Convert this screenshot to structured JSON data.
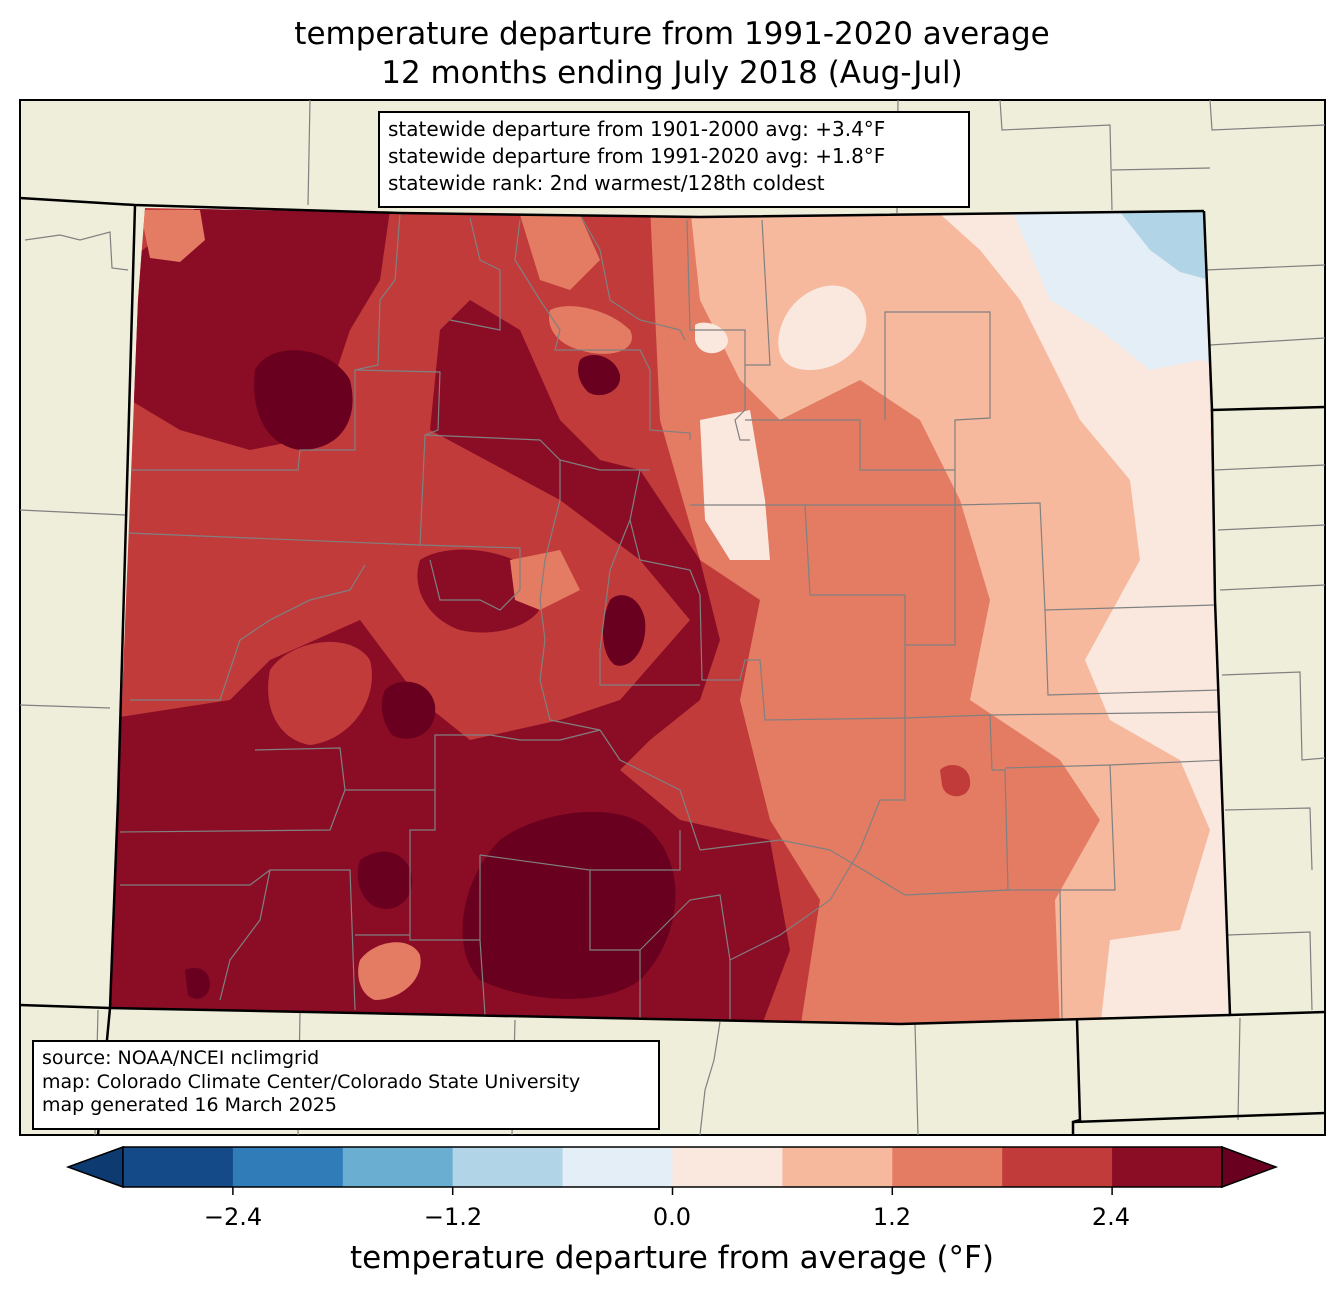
{
  "title": {
    "line1": "temperature departure from 1991-2020 average",
    "line2": "12 months ending July 2018 (Aug-Jul)"
  },
  "stats": {
    "line1": "statewide departure from 1901-2000 avg: +3.4°F",
    "line2": "statewide departure from 1991-2020 avg: +1.8°F",
    "line3": "statewide rank: 2nd warmest/128th coldest"
  },
  "credits": {
    "line1": "source: NOAA/NCEI nclimgrid",
    "line2": "map: Colorado Climate Center/Colorado State University",
    "line3": "map generated 16 March 2025"
  },
  "colorbar": {
    "label": "temperature departure from average (°F)",
    "ticks": [
      "−2.4",
      "−1.2",
      "0.0",
      "1.2",
      "2.4"
    ],
    "bins": [
      -3.0,
      -2.4,
      -1.8,
      -1.2,
      -0.6,
      0.0,
      0.6,
      1.2,
      1.8,
      2.4,
      3.0
    ],
    "colors": [
      "#0d3a70",
      "#154a88",
      "#2f7cb8",
      "#6aaed2",
      "#b1d5e7",
      "#e3eef6",
      "#fae8df",
      "#f7b99e",
      "#e37c63",
      "#c13b3b",
      "#8b0c25",
      "#6a001f"
    ]
  },
  "background_colors": {
    "land": "#efeedb",
    "county_lines": "#808080",
    "state_lines": "#000000"
  }
}
